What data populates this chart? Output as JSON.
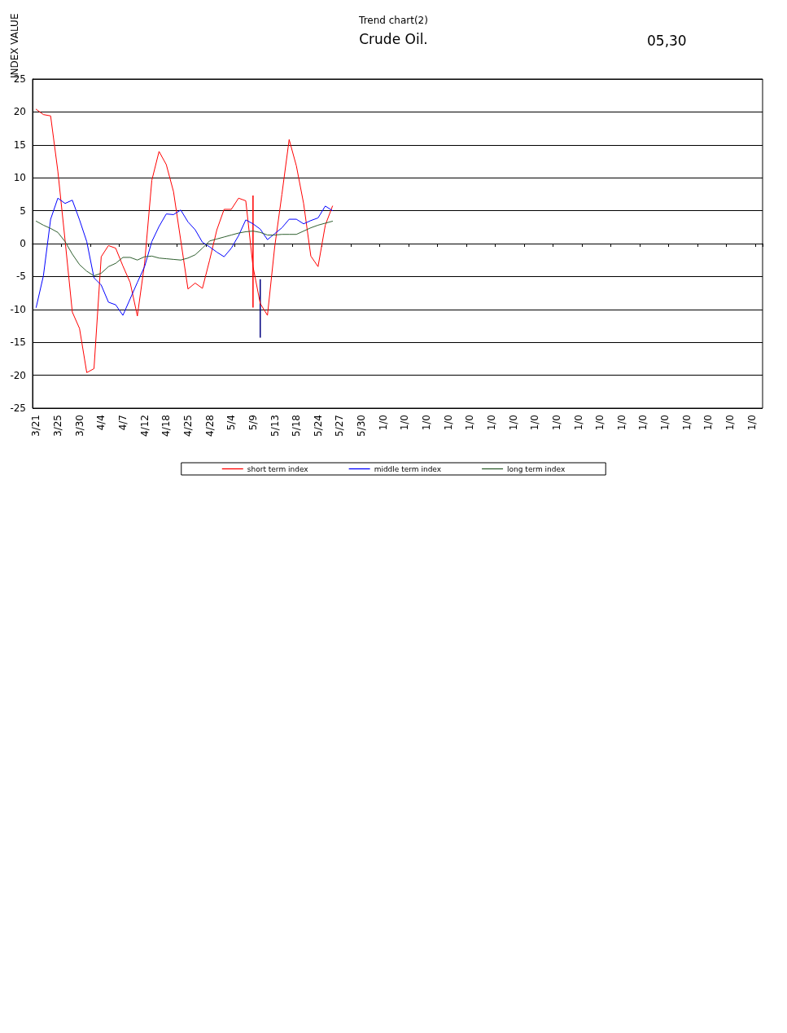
{
  "chart_data": {
    "type": "line",
    "title": "Trend chart(2)",
    "subtitle": "Crude Oil.",
    "ylabel": "INDEX VALUE",
    "annotations": [
      "05,30"
    ],
    "categories": [
      "3/21",
      null,
      null,
      "3/25",
      null,
      null,
      "3/30",
      null,
      null,
      "4/4",
      null,
      null,
      "4/7",
      null,
      null,
      "4/12",
      null,
      null,
      "4/18",
      null,
      null,
      "4/25",
      null,
      null,
      "4/28",
      null,
      null,
      "5/4",
      null,
      null,
      "5/9",
      null,
      null,
      "5/13",
      null,
      null,
      "5/18",
      null,
      null,
      "5/24",
      null,
      null,
      "5/27",
      null,
      null,
      "5/30",
      null,
      null,
      "1/0",
      null,
      null,
      "1/0",
      null,
      null,
      "1/0",
      null,
      null,
      "1/0",
      null,
      null,
      "1/0",
      null,
      null,
      "1/0",
      null,
      null,
      "1/0",
      null,
      null,
      "1/0",
      null,
      null,
      "1/0",
      null,
      null,
      "1/0",
      null,
      null,
      "1/0",
      null,
      null,
      "1/0",
      null,
      null,
      "1/0",
      null,
      null,
      "1/0",
      null,
      null,
      "1/0",
      null,
      null,
      "1/0",
      null,
      null,
      "1/0",
      null,
      null,
      "1/0",
      null
    ],
    "ylim": [
      -25,
      25
    ],
    "yticks": [
      -25,
      -20,
      -15,
      -10,
      -5,
      0,
      5,
      10,
      15,
      20,
      25
    ],
    "grid": "y",
    "legend": "bottom",
    "marker": "none",
    "line_style": "solid",
    "series": [
      {
        "name": "short term index",
        "color": "#ff0000",
        "values": [
          20.4,
          19.6,
          19.4,
          11,
          0.5,
          -10.4,
          -12.9,
          -19.6,
          -19,
          -2,
          -0.3,
          -0.7,
          -3.4,
          -5.9,
          -11,
          -3,
          9.6,
          14,
          12,
          7.9,
          0.5,
          -6.9,
          -6,
          -6.8,
          -2.5,
          2.1,
          5.2,
          5.2,
          6.9,
          6.5,
          -3.5,
          -9.1,
          -10.9,
          -0.5,
          7.5,
          15.8,
          11.8,
          6.1,
          -1.9,
          -3.5,
          2.8,
          5.7,
          null,
          null,
          null,
          null,
          null,
          null,
          null,
          null,
          null,
          null,
          null,
          null,
          null,
          null,
          null,
          null,
          null,
          null,
          null,
          null,
          null,
          null,
          null,
          null,
          null,
          null,
          null,
          null,
          null,
          null,
          null,
          null,
          null,
          null,
          null,
          null,
          null,
          null,
          null,
          null,
          null,
          null,
          null,
          null,
          null,
          null,
          null,
          null,
          null,
          null,
          null,
          null,
          null,
          null,
          null,
          null,
          null,
          null,
          null
        ]
      },
      {
        "name": "middle term index",
        "color": "#0000ff",
        "values": [
          -9.7,
          -4.9,
          3.7,
          6.9,
          6.1,
          6.6,
          3.6,
          0.3,
          -5.2,
          -6.3,
          -8.9,
          -9.3,
          -10.9,
          -8.4,
          -5.9,
          -3.5,
          0.3,
          2.6,
          4.5,
          4.4,
          5.1,
          3.3,
          2.1,
          0.2,
          -0.5,
          -1.3,
          -2,
          -0.7,
          1.2,
          3.6,
          3,
          2.2,
          0.6,
          1.5,
          2.4,
          3.7,
          3.7,
          3,
          3.5,
          3.9,
          5.7,
          5,
          null,
          null,
          null,
          null,
          null,
          null,
          null,
          null,
          null,
          null,
          null,
          null,
          null,
          null,
          null,
          null,
          null,
          null,
          null,
          null,
          null,
          null,
          null,
          null,
          null,
          null,
          null,
          null,
          null,
          null,
          null,
          null,
          null,
          null,
          null,
          null,
          null,
          null,
          null,
          null,
          null,
          null,
          null,
          null,
          null,
          null,
          null,
          null,
          null,
          null,
          null,
          null,
          null,
          null,
          null,
          null,
          null,
          null,
          null
        ]
      },
      {
        "name": "long term index",
        "color": "#2f5f2f",
        "values": [
          3.4,
          2.8,
          2.3,
          1.7,
          0.3,
          -1.6,
          -3.2,
          -4.2,
          -4.9,
          -4.5,
          -3.5,
          -3,
          -2.1,
          -2.1,
          -2.5,
          -2,
          -1.9,
          -2.2,
          -2.3,
          -2.4,
          -2.5,
          -2.2,
          -1.7,
          -0.7,
          0.4,
          0.7,
          1,
          1.3,
          1.6,
          1.8,
          1.9,
          1.7,
          1.3,
          1.3,
          1.4,
          1.4,
          1.4,
          1.9,
          2.4,
          2.8,
          3.1,
          3.4,
          null,
          null,
          null,
          null,
          null,
          null,
          null,
          null,
          null,
          null,
          null,
          null,
          null,
          null,
          null,
          null,
          null,
          null,
          null,
          null,
          null,
          null,
          null,
          null,
          null,
          null,
          null,
          null,
          null,
          null,
          null,
          null,
          null,
          null,
          null,
          null,
          null,
          null,
          null,
          null,
          null,
          null,
          null,
          null,
          null,
          null,
          null,
          null,
          null,
          null,
          null,
          null,
          null,
          null,
          null,
          null,
          null,
          null,
          null
        ]
      },
      {
        "type": "bar",
        "color": "#ff0000",
        "values": [
          null,
          null,
          null,
          null,
          null,
          null,
          null,
          null,
          null,
          null,
          null,
          null,
          null,
          null,
          null,
          null,
          null,
          null,
          null,
          null,
          null,
          null,
          null,
          null,
          null,
          null,
          null,
          null,
          null,
          null,
          17,
          null,
          null,
          null,
          null,
          null,
          null,
          null,
          null,
          null,
          null,
          null,
          null,
          null,
          null,
          null,
          null,
          null,
          null,
          null,
          null,
          null,
          null,
          null,
          null,
          null,
          null,
          null,
          null,
          null,
          null,
          null,
          null,
          null,
          null,
          null,
          null,
          null,
          null,
          null,
          null,
          null,
          null,
          null,
          null,
          null,
          null,
          null,
          null,
          null,
          null,
          null,
          null,
          null,
          null,
          null,
          null,
          null,
          null,
          null,
          null,
          null,
          null,
          null,
          null,
          null,
          null,
          null,
          null,
          null,
          null
        ],
        "base": [
          null,
          null,
          null,
          null,
          null,
          null,
          null,
          null,
          null,
          null,
          null,
          null,
          null,
          null,
          null,
          null,
          null,
          null,
          null,
          null,
          null,
          null,
          null,
          null,
          null,
          null,
          null,
          null,
          null,
          null,
          -9.7,
          null,
          null,
          null,
          null,
          null,
          null,
          null,
          null,
          null,
          null,
          null,
          null,
          null,
          null,
          null,
          null,
          null,
          null,
          null,
          null,
          null,
          null,
          null,
          null,
          null,
          null,
          null,
          null,
          null,
          null,
          null,
          null,
          null,
          null,
          null,
          null,
          null,
          null,
          null,
          null,
          null,
          null,
          null,
          null,
          null,
          null,
          null,
          null,
          null,
          null,
          null,
          null,
          null,
          null,
          null,
          null,
          null,
          null,
          null,
          null,
          null,
          null,
          null,
          null,
          null,
          null,
          null,
          null,
          null,
          null
        ]
      },
      {
        "type": "bar",
        "color": "#000080",
        "values": [
          null,
          null,
          null,
          null,
          null,
          null,
          null,
          null,
          null,
          null,
          null,
          null,
          null,
          null,
          null,
          null,
          null,
          null,
          null,
          null,
          null,
          null,
          null,
          null,
          null,
          null,
          null,
          null,
          null,
          null,
          null,
          8.9,
          null,
          null,
          null,
          null,
          null,
          null,
          null,
          null,
          null,
          null,
          null,
          null,
          null,
          null,
          null,
          null,
          null,
          null,
          null,
          null,
          null,
          null,
          null,
          null,
          null,
          null,
          null,
          null,
          null,
          null,
          null,
          null,
          null,
          null,
          null,
          null,
          null,
          null,
          null,
          null,
          null,
          null,
          null,
          null,
          null,
          null,
          null,
          null,
          null,
          null,
          null,
          null,
          null,
          null,
          null,
          null,
          null,
          null,
          null,
          null,
          null,
          null,
          null,
          null,
          null,
          null,
          null,
          null,
          null
        ],
        "base": [
          null,
          null,
          null,
          null,
          null,
          null,
          null,
          null,
          null,
          null,
          null,
          null,
          null,
          null,
          null,
          null,
          null,
          null,
          null,
          null,
          null,
          null,
          null,
          null,
          null,
          null,
          null,
          null,
          null,
          null,
          null,
          -14.3,
          null,
          null,
          null,
          null,
          null,
          null,
          null,
          null,
          null,
          null,
          null,
          null,
          null,
          null,
          null,
          null,
          null,
          null,
          null,
          null,
          null,
          null,
          null,
          null,
          null,
          null,
          null,
          null,
          null,
          null,
          null,
          null,
          null,
          null,
          null,
          null,
          null,
          null,
          null,
          null,
          null,
          null,
          null,
          null,
          null,
          null,
          null,
          null,
          null,
          null,
          null,
          null,
          null,
          null,
          null,
          null,
          null,
          null,
          null,
          null,
          null,
          null,
          null,
          null,
          null,
          null,
          null,
          null,
          null
        ]
      }
    ]
  }
}
